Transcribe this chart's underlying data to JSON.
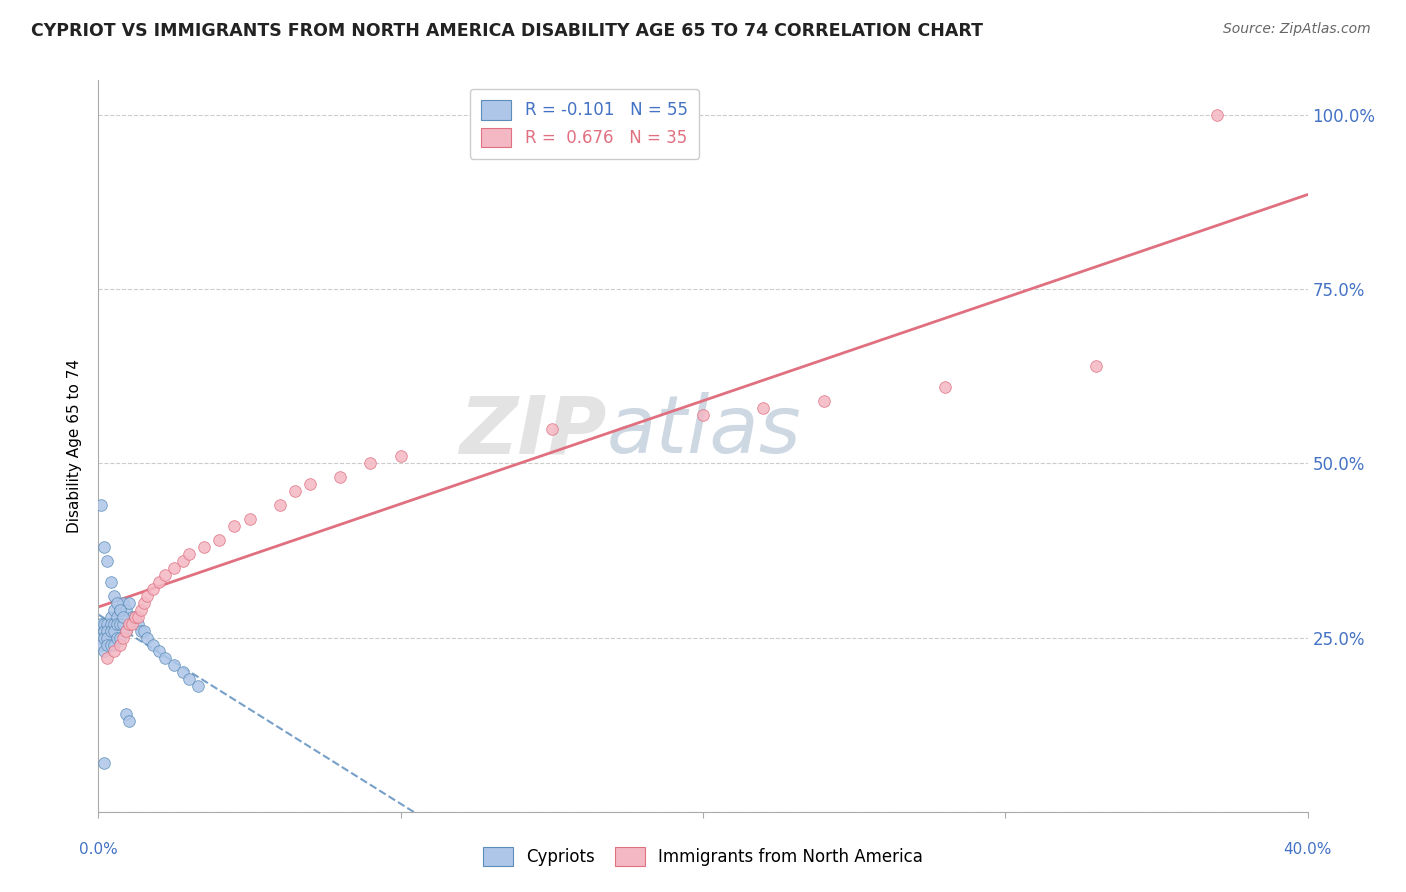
{
  "title": "CYPRIOT VS IMMIGRANTS FROM NORTH AMERICA DISABILITY AGE 65 TO 74 CORRELATION CHART",
  "source": "Source: ZipAtlas.com",
  "ylabel": "Disability Age 65 to 74",
  "xlim": [
    0.0,
    0.4
  ],
  "ylim": [
    0.0,
    1.05
  ],
  "cypriot_color": "#aec6e8",
  "cypriot_edge": "#5b8db8",
  "immigrants_color": "#f4b8c4",
  "immigrants_edge": "#e07080",
  "trend_blue_color": "#5588bb",
  "trend_pink_color": "#e07080",
  "grid_color": "#cccccc",
  "background_color": "#ffffff",
  "dot_size": 70,
  "watermark": "ZIPatlas",
  "cypriot_x": [
    0.001,
    0.001,
    0.001,
    0.002,
    0.002,
    0.002,
    0.002,
    0.003,
    0.003,
    0.003,
    0.003,
    0.004,
    0.004,
    0.004,
    0.004,
    0.005,
    0.005,
    0.005,
    0.005,
    0.006,
    0.006,
    0.006,
    0.007,
    0.007,
    0.007,
    0.008,
    0.008,
    0.009,
    0.009,
    0.01,
    0.01,
    0.011,
    0.012,
    0.013,
    0.014,
    0.015,
    0.016,
    0.018,
    0.02,
    0.022,
    0.025,
    0.028,
    0.03,
    0.033,
    0.001,
    0.002,
    0.003,
    0.004,
    0.005,
    0.006,
    0.007,
    0.008,
    0.009,
    0.01,
    0.002
  ],
  "cypriot_y": [
    0.27,
    0.25,
    0.24,
    0.27,
    0.26,
    0.25,
    0.23,
    0.27,
    0.26,
    0.25,
    0.24,
    0.28,
    0.27,
    0.26,
    0.24,
    0.29,
    0.27,
    0.26,
    0.24,
    0.28,
    0.27,
    0.25,
    0.29,
    0.27,
    0.25,
    0.3,
    0.27,
    0.29,
    0.26,
    0.3,
    0.27,
    0.28,
    0.28,
    0.27,
    0.26,
    0.26,
    0.25,
    0.24,
    0.23,
    0.22,
    0.21,
    0.2,
    0.19,
    0.18,
    0.44,
    0.38,
    0.36,
    0.33,
    0.31,
    0.3,
    0.29,
    0.28,
    0.14,
    0.13,
    0.07
  ],
  "immigrants_x": [
    0.003,
    0.005,
    0.007,
    0.008,
    0.009,
    0.01,
    0.011,
    0.012,
    0.013,
    0.014,
    0.015,
    0.016,
    0.018,
    0.02,
    0.022,
    0.025,
    0.028,
    0.03,
    0.035,
    0.04,
    0.045,
    0.05,
    0.06,
    0.065,
    0.07,
    0.08,
    0.09,
    0.1,
    0.15,
    0.2,
    0.22,
    0.24,
    0.28,
    0.33,
    0.37
  ],
  "immigrants_y": [
    0.22,
    0.23,
    0.24,
    0.25,
    0.26,
    0.27,
    0.27,
    0.28,
    0.28,
    0.29,
    0.3,
    0.31,
    0.32,
    0.33,
    0.34,
    0.35,
    0.36,
    0.37,
    0.38,
    0.39,
    0.41,
    0.42,
    0.44,
    0.46,
    0.47,
    0.48,
    0.5,
    0.51,
    0.55,
    0.57,
    0.58,
    0.59,
    0.61,
    0.64,
    1.0
  ]
}
